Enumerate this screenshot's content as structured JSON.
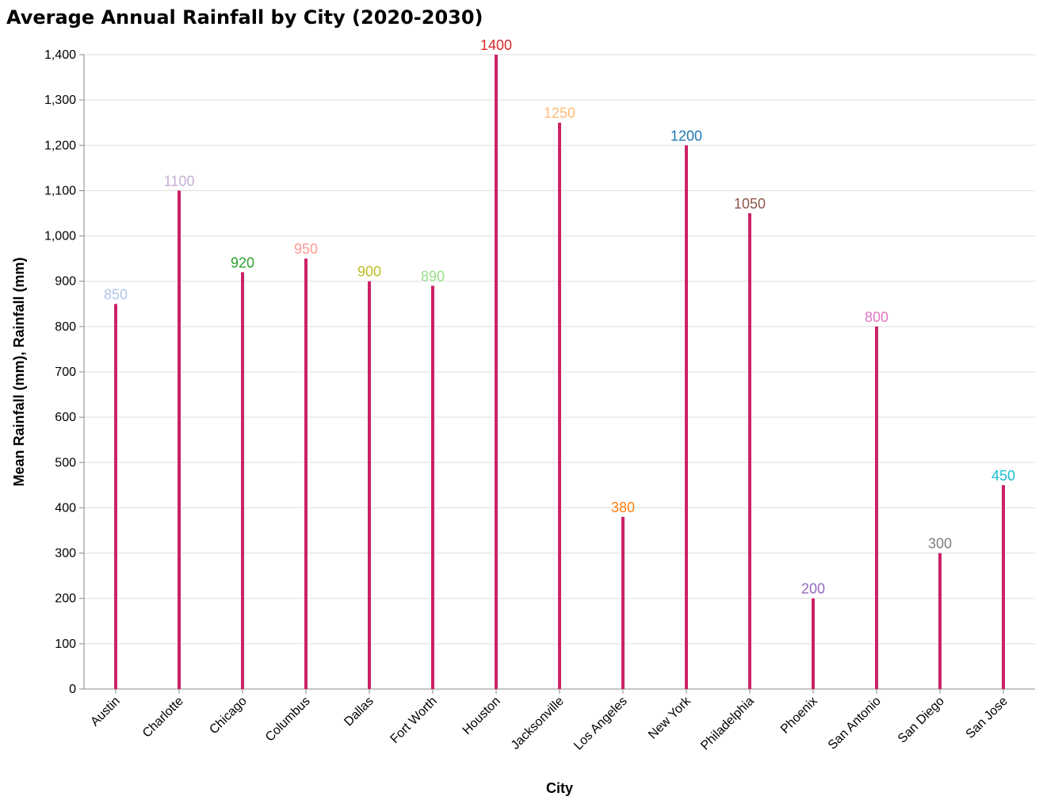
{
  "chart_data": {
    "type": "bar",
    "title": "Average Annual Rainfall by City (2020-2030)",
    "xlabel": "City",
    "ylabel": "Mean Rainfall (mm), Rainfall (mm)",
    "ylim": [
      0,
      1400
    ],
    "yticks": [
      0,
      100,
      200,
      300,
      400,
      500,
      600,
      700,
      800,
      900,
      1000,
      1100,
      1200,
      1300,
      1400
    ],
    "grid": true,
    "bar_color": "#cc2266",
    "categories": [
      "Austin",
      "Charlotte",
      "Chicago",
      "Columbus",
      "Dallas",
      "Fort Worth",
      "Houston",
      "Jacksonville",
      "Los Angeles",
      "New York",
      "Philadelphia",
      "Phoenix",
      "San Antonio",
      "San Diego",
      "San Jose"
    ],
    "values": [
      850,
      1100,
      920,
      950,
      900,
      890,
      1400,
      1250,
      380,
      1200,
      1050,
      200,
      800,
      300,
      450
    ],
    "label_colors": [
      "#aec7e8",
      "#c5b0d5",
      "#2ca02c",
      "#ff9896",
      "#bcbd22",
      "#98df8a",
      "#d62728",
      "#ffbb78",
      "#ff7f0e",
      "#1f77b4",
      "#8c564b",
      "#9467bd",
      "#e377c2",
      "#7f7f7f",
      "#17becf"
    ]
  }
}
